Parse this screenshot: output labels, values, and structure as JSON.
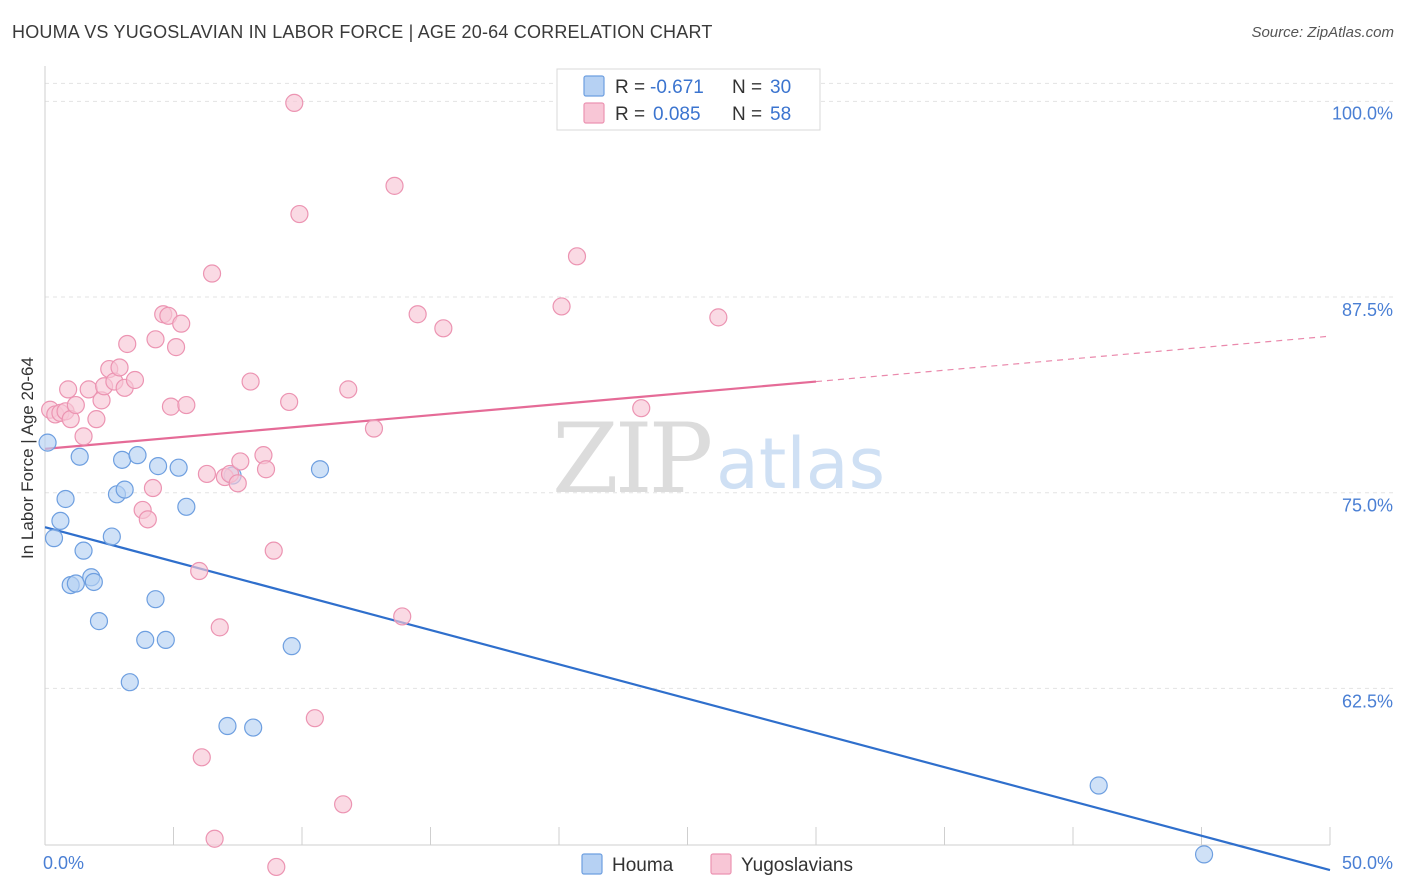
{
  "title": "HOUMA VS YUGOSLAVIAN IN LABOR FORCE | AGE 20-64 CORRELATION CHART",
  "source": "Source: ZipAtlas.com",
  "watermark": {
    "zip": "ZIP",
    "atlas": "atlas"
  },
  "colors": {
    "blue": "#2f6fcc",
    "blue_fill": "#b6d1f3",
    "blue_stroke": "#6e9fe0",
    "pink": "#e56b97",
    "pink_fill": "#f8c6d6",
    "pink_stroke": "#ec94b2",
    "grid": "#e3e3e3",
    "tick_label": "#4a7fd4"
  },
  "legend": {
    "r_label": "R =",
    "n_label": "N =",
    "items": [
      {
        "r": "-0.671",
        "n": "30"
      },
      {
        "r": "0.085",
        "n": "58"
      }
    ]
  },
  "chart_data": {
    "type": "scatter",
    "title": "HOUMA VS YUGOSLAVIAN IN LABOR FORCE | AGE 20-64 CORRELATION CHART",
    "xlabel": "",
    "ylabel": "In Labor Force | Age 20-64",
    "xlim": [
      0,
      50
    ],
    "ylim": [
      52.5,
      102
    ],
    "x_tick_labels": [
      "0.0%",
      "50.0%"
    ],
    "y_ticks": [
      62.5,
      75.0,
      87.5,
      100.0
    ],
    "y_tick_labels": [
      "62.5%",
      "75.0%",
      "87.5%",
      "100.0%"
    ],
    "grid": true,
    "legend_position": "top-center",
    "series": [
      {
        "name": "Houma",
        "points": [
          [
            0.1,
            78.2
          ],
          [
            0.35,
            72.1
          ],
          [
            0.6,
            73.2
          ],
          [
            0.8,
            74.6
          ],
          [
            1.0,
            69.1
          ],
          [
            1.2,
            69.2
          ],
          [
            1.35,
            77.3
          ],
          [
            1.5,
            71.3
          ],
          [
            1.8,
            69.6
          ],
          [
            1.9,
            69.3
          ],
          [
            2.1,
            66.8
          ],
          [
            2.6,
            72.2
          ],
          [
            2.8,
            74.9
          ],
          [
            3.0,
            77.1
          ],
          [
            3.1,
            75.2
          ],
          [
            3.3,
            62.9
          ],
          [
            3.6,
            77.4
          ],
          [
            3.9,
            65.6
          ],
          [
            4.3,
            68.2
          ],
          [
            4.4,
            76.7
          ],
          [
            4.7,
            65.6
          ],
          [
            5.2,
            76.6
          ],
          [
            5.5,
            74.1
          ],
          [
            7.1,
            60.1
          ],
          [
            7.3,
            76.1
          ],
          [
            8.1,
            60.0
          ],
          [
            9.6,
            65.2
          ],
          [
            10.7,
            76.5
          ],
          [
            41.0,
            56.3
          ],
          [
            45.1,
            51.9
          ]
        ],
        "trend": {
          "x": [
            0,
            50
          ],
          "y": [
            72.8,
            50.9
          ]
        }
      },
      {
        "name": "Yugoslavians",
        "points": [
          [
            0.2,
            80.3
          ],
          [
            0.4,
            80.0
          ],
          [
            0.6,
            80.1
          ],
          [
            0.8,
            80.2
          ],
          [
            0.9,
            81.6
          ],
          [
            1.0,
            79.7
          ],
          [
            1.2,
            80.6
          ],
          [
            1.5,
            78.6
          ],
          [
            1.7,
            81.6
          ],
          [
            2.0,
            79.7
          ],
          [
            2.2,
            80.9
          ],
          [
            2.3,
            81.8
          ],
          [
            2.5,
            82.9
          ],
          [
            2.7,
            82.1
          ],
          [
            2.9,
            83.0
          ],
          [
            3.1,
            81.7
          ],
          [
            3.2,
            84.5
          ],
          [
            3.5,
            82.2
          ],
          [
            3.8,
            73.9
          ],
          [
            4.0,
            73.3
          ],
          [
            4.2,
            75.3
          ],
          [
            4.3,
            84.8
          ],
          [
            4.6,
            86.4
          ],
          [
            4.8,
            86.3
          ],
          [
            4.9,
            80.5
          ],
          [
            5.1,
            84.3
          ],
          [
            5.3,
            85.8
          ],
          [
            5.5,
            80.6
          ],
          [
            6.0,
            70.0
          ],
          [
            6.1,
            58.1
          ],
          [
            6.3,
            76.2
          ],
          [
            6.5,
            89.0
          ],
          [
            6.6,
            52.9
          ],
          [
            6.8,
            66.4
          ],
          [
            7.0,
            76.0
          ],
          [
            7.2,
            76.2
          ],
          [
            7.5,
            75.6
          ],
          [
            7.6,
            77.0
          ],
          [
            8.0,
            82.1
          ],
          [
            8.5,
            77.4
          ],
          [
            8.6,
            76.5
          ],
          [
            8.9,
            71.3
          ],
          [
            9.0,
            51.1
          ],
          [
            9.5,
            80.8
          ],
          [
            9.7,
            99.9
          ],
          [
            9.9,
            92.8
          ],
          [
            10.5,
            60.6
          ],
          [
            11.6,
            55.1
          ],
          [
            11.8,
            81.6
          ],
          [
            12.8,
            79.1
          ],
          [
            13.6,
            94.6
          ],
          [
            13.9,
            67.1
          ],
          [
            14.5,
            86.4
          ],
          [
            15.5,
            85.5
          ],
          [
            20.1,
            86.9
          ],
          [
            20.7,
            90.1
          ],
          [
            23.2,
            80.4
          ],
          [
            26.2,
            86.2
          ]
        ],
        "trend": {
          "x": [
            0,
            30
          ],
          "y": [
            77.8,
            82.1
          ]
        },
        "trend_dashed": {
          "x": [
            30,
            50
          ],
          "y": [
            82.1,
            85.0
          ]
        }
      }
    ]
  }
}
